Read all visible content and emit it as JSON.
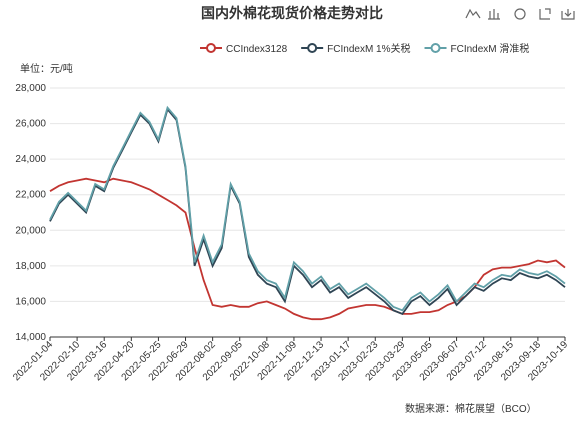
{
  "chart_data": {
    "type": "line",
    "title": "国内外棉花现货价格走势对比",
    "unit_label": "单位：元/吨",
    "source": "数据来源：棉花展望（BCO）",
    "categories": [
      "2022-01-04",
      null,
      null,
      "2022-02-10",
      null,
      null,
      "2022-03-16",
      null,
      null,
      "2022-04-20",
      null,
      null,
      "2022-05-25",
      null,
      null,
      "2022-06-29",
      null,
      null,
      "2022-08-02",
      null,
      null,
      "2022-09-05",
      null,
      null,
      "2022-10-08",
      null,
      null,
      "2022-11-09",
      null,
      null,
      "2022-12-13",
      null,
      null,
      "2023-01-17",
      null,
      null,
      "2023-02-23",
      null,
      null,
      "2023-03-29",
      null,
      null,
      "2023-05-05",
      null,
      null,
      "2023-06-07",
      null,
      null,
      "2023-07-12",
      null,
      null,
      "2023-08-15",
      null,
      null,
      "2023-09-18",
      null,
      null,
      "2023-10-19"
    ],
    "series": [
      {
        "name": "CCIndex3128",
        "color": "#c23531",
        "values": [
          22200,
          22500,
          22700,
          22800,
          22900,
          22800,
          22700,
          22900,
          22800,
          22700,
          22500,
          22300,
          22000,
          21700,
          21400,
          21000,
          19000,
          17200,
          15800,
          15700,
          15800,
          15700,
          15700,
          15900,
          16000,
          15800,
          15600,
          15300,
          15100,
          15000,
          15000,
          15100,
          15300,
          15600,
          15700,
          15800,
          15800,
          15700,
          15500,
          15300,
          15300,
          15400,
          15400,
          15500,
          15800,
          16000,
          16300,
          16800,
          17500,
          17800,
          17900,
          17900,
          18000,
          18100,
          18300,
          18200,
          18300,
          17900
        ]
      },
      {
        "name": "FCIndexM 1%关税",
        "color": "#2f4554",
        "values": [
          20500,
          21500,
          22000,
          21500,
          21000,
          22500,
          22200,
          23500,
          24500,
          25500,
          26500,
          26000,
          25000,
          26800,
          26200,
          23500,
          18000,
          19500,
          18000,
          19000,
          22500,
          21500,
          18500,
          17500,
          17000,
          16800,
          16000,
          18000,
          17500,
          16800,
          17200,
          16500,
          16800,
          16200,
          16500,
          16800,
          16400,
          16000,
          15500,
          15300,
          16000,
          16300,
          15800,
          16200,
          16700,
          15800,
          16300,
          16800,
          16600,
          17000,
          17300,
          17200,
          17600,
          17400,
          17300,
          17500,
          17200,
          16800
        ]
      },
      {
        "name": "FCIndexM 滑准税",
        "color": "#61a0a8",
        "values": [
          20600,
          21600,
          22100,
          21600,
          21100,
          22600,
          22300,
          23600,
          24600,
          25600,
          26600,
          26100,
          25100,
          26900,
          26300,
          23600,
          18200,
          19700,
          18200,
          19200,
          22600,
          21600,
          18700,
          17700,
          17200,
          17000,
          16200,
          18200,
          17700,
          17000,
          17400,
          16700,
          17000,
          16400,
          16700,
          17000,
          16600,
          16200,
          15700,
          15500,
          16200,
          16500,
          16000,
          16400,
          16900,
          16000,
          16500,
          17000,
          16800,
          17200,
          17500,
          17400,
          17800,
          17600,
          17500,
          17700,
          17400,
          17000
        ]
      }
    ],
    "ylim": [
      14000,
      28000
    ],
    "yticks": [
      {
        "value": 14000,
        "label": "14,000"
      },
      {
        "value": 16000,
        "label": "16,000"
      },
      {
        "value": 18000,
        "label": "18,000"
      },
      {
        "value": 20000,
        "label": "20,000"
      },
      {
        "value": 22000,
        "label": "22,000"
      },
      {
        "value": 24000,
        "label": "24,000"
      },
      {
        "value": 26000,
        "label": "26,000"
      },
      {
        "value": 28000,
        "label": "28,000"
      }
    ],
    "grid": true
  }
}
